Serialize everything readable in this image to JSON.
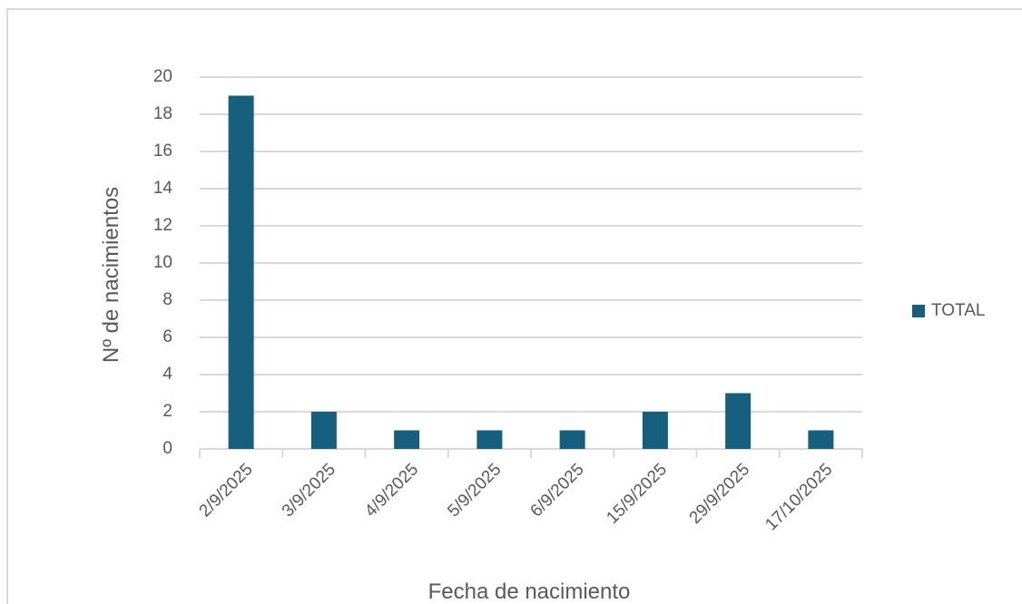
{
  "chart_data": {
    "type": "bar",
    "categories": [
      "2/9/2025",
      "3/9/2025",
      "4/9/2025",
      "5/9/2025",
      "6/9/2025",
      "15/9/2025",
      "29/9/2025",
      "17/10/2025"
    ],
    "series": [
      {
        "name": "TOTAL",
        "color": "#165f7f",
        "values": [
          19,
          2,
          1,
          1,
          1,
          2,
          3,
          1
        ]
      }
    ],
    "x_label": "Fecha de nacimiento",
    "y_label": "Nº de nacimientos",
    "ylim": [
      0,
      20
    ],
    "yticks": [
      0,
      2,
      4,
      6,
      8,
      10,
      12,
      14,
      16,
      18,
      20
    ],
    "grid": true,
    "legend": "right"
  }
}
